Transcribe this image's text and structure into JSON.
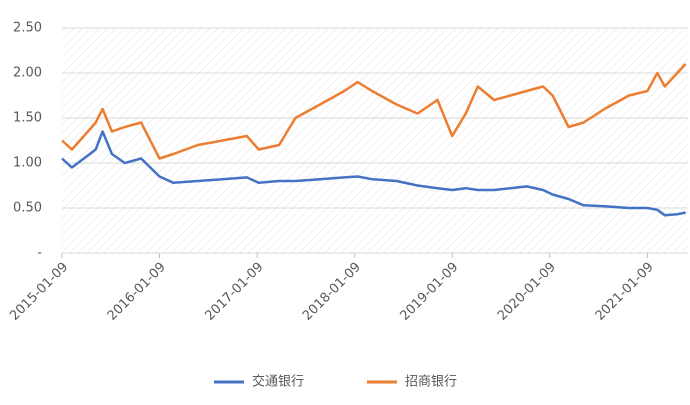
{
  "chart_data": {
    "type": "line",
    "x": [
      "2015-01-09",
      "2015-02-15",
      "2015-04-01",
      "2015-05-15",
      "2015-06-10",
      "2015-07-15",
      "2015-09-01",
      "2015-11-01",
      "2016-01-09",
      "2016-03-01",
      "2016-06-01",
      "2016-09-01",
      "2016-12-01",
      "2017-01-15",
      "2017-04-01",
      "2017-06-01",
      "2017-09-01",
      "2017-12-01",
      "2018-01-20",
      "2018-03-15",
      "2018-06-15",
      "2018-09-01",
      "2018-11-15",
      "2019-01-09",
      "2019-03-01",
      "2019-04-15",
      "2019-06-15",
      "2019-08-15",
      "2019-10-15",
      "2019-12-15",
      "2020-01-20",
      "2020-03-20",
      "2020-05-15",
      "2020-08-01",
      "2020-11-01",
      "2021-01-09",
      "2021-02-15",
      "2021-03-15",
      "2021-05-01",
      "2021-06-01"
    ],
    "series": [
      {
        "name": "交通银行",
        "color": "#4472c4",
        "values": [
          1.05,
          0.95,
          1.05,
          1.15,
          1.35,
          1.1,
          1.0,
          1.05,
          0.85,
          0.78,
          0.8,
          0.82,
          0.84,
          0.78,
          0.8,
          0.8,
          0.82,
          0.84,
          0.85,
          0.82,
          0.8,
          0.75,
          0.72,
          0.7,
          0.72,
          0.7,
          0.7,
          0.72,
          0.74,
          0.7,
          0.65,
          0.6,
          0.53,
          0.52,
          0.5,
          0.5,
          0.48,
          0.42,
          0.43,
          0.45
        ]
      },
      {
        "name": "招商银行",
        "color": "#ed7d31",
        "values": [
          1.25,
          1.15,
          1.3,
          1.45,
          1.6,
          1.35,
          1.4,
          1.45,
          1.05,
          1.1,
          1.2,
          1.25,
          1.3,
          1.15,
          1.2,
          1.5,
          1.65,
          1.8,
          1.9,
          1.8,
          1.65,
          1.55,
          1.7,
          1.3,
          1.55,
          1.85,
          1.7,
          1.75,
          1.8,
          1.85,
          1.75,
          1.4,
          1.45,
          1.6,
          1.75,
          1.8,
          2.0,
          1.85,
          2.0,
          2.1
        ]
      }
    ],
    "xlim": [
      "2015-01-09",
      "2021-06-10"
    ],
    "xticks": [
      "2015-01-09",
      "2016-01-09",
      "2017-01-09",
      "2018-01-09",
      "2019-01-09",
      "2020-01-09",
      "2021-01-09"
    ],
    "ylim": [
      0,
      2.5
    ],
    "yticks": [
      {
        "value": 0,
        "label": "-"
      },
      {
        "value": 0.5,
        "label": "0.50"
      },
      {
        "value": 1,
        "label": "1.00"
      },
      {
        "value": 1.5,
        "label": "1.50"
      },
      {
        "value": 2,
        "label": "2.00"
      },
      {
        "value": 2.5,
        "label": "2.50"
      }
    ],
    "grid": true,
    "legend": "bottom"
  }
}
